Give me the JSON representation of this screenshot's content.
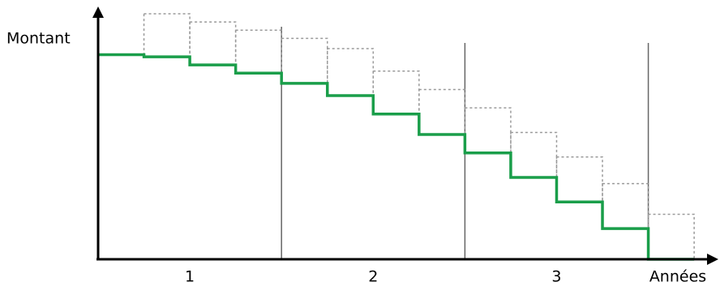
{
  "chart_data": {
    "type": "step",
    "y_label": "Montant",
    "x_label": "Années",
    "categories": [
      "1",
      "2",
      "3"
    ],
    "x": [
      0,
      0.25,
      0.5,
      0.75,
      1,
      1.25,
      1.5,
      1.75,
      2,
      2.25,
      2.5,
      2.75,
      3
    ],
    "series": [
      {
        "color": "#1a9e4a",
        "values": [
          100,
          99,
          95,
          91,
          86,
          80,
          71,
          61,
          52,
          40,
          28,
          15,
          0
        ]
      },
      {
        "color": "#9a9a9a",
        "values": [
          null,
          120,
          116,
          112,
          108,
          103,
          92,
          83,
          74,
          62,
          50,
          37,
          22
        ]
      }
    ],
    "xlim": [
      0,
      3.36
    ],
    "ylim": [
      0,
      122
    ]
  }
}
